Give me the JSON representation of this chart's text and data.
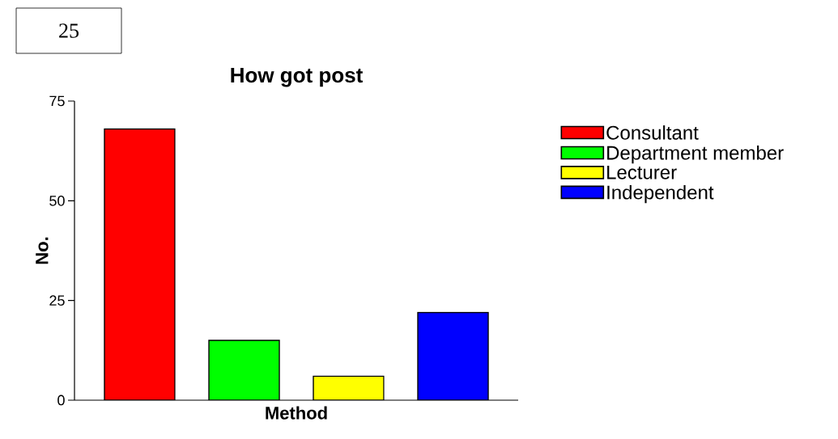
{
  "chart_data": {
    "type": "bar",
    "title": "How got post",
    "xlabel": "Method",
    "ylabel": "No.",
    "annotations": [
      "25"
    ],
    "categories": [
      null
    ],
    "series": [
      {
        "name": "Consultant",
        "color": "#ff0000",
        "values": [
          68
        ]
      },
      {
        "name": "Department member",
        "color": "#00ff00",
        "values": [
          15
        ]
      },
      {
        "name": "Lecturer",
        "color": "#ffff00",
        "values": [
          6
        ]
      },
      {
        "name": "Independent",
        "color": "#0000ff",
        "values": [
          22
        ]
      }
    ],
    "ylim": [
      0,
      75
    ],
    "yticks": [
      0,
      25,
      50,
      75
    ],
    "legend": "right"
  }
}
